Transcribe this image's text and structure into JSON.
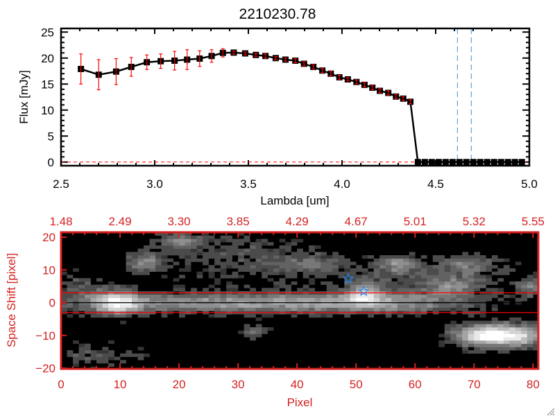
{
  "chart_data": [
    {
      "type": "line",
      "title": "2210230.78",
      "xlabel": "Lambda [um]",
      "ylabel": "Flux [mJy]",
      "xlim": [
        2.5,
        5.0
      ],
      "ylim": [
        -0.7,
        25.7
      ],
      "xticks": [
        2.5,
        3.0,
        3.5,
        4.0,
        4.5,
        5.0
      ],
      "xtick_labels": [
        "2.5",
        "3.0",
        "3.5",
        "4.0",
        "4.5",
        "5.0"
      ],
      "yticks": [
        0,
        5,
        10,
        15,
        20,
        25
      ],
      "ytick_labels": [
        "0",
        "5",
        "10",
        "15",
        "20",
        "25"
      ],
      "series": [
        {
          "name": "flux",
          "color": "#000000",
          "errcolor": "#ff0000",
          "x": [
            2.606,
            2.701,
            2.794,
            2.875,
            2.958,
            3.032,
            3.106,
            3.173,
            3.24,
            3.304,
            3.364,
            3.422,
            3.483,
            3.54,
            3.591,
            3.646,
            3.698,
            3.751,
            3.797,
            3.847,
            3.895,
            3.94,
            3.986,
            4.031,
            4.077,
            4.12,
            4.162,
            4.202,
            4.247,
            4.288,
            4.327,
            4.365,
            4.405,
            4.442,
            4.479,
            4.516,
            4.553,
            4.59,
            4.627,
            4.664,
            4.701,
            4.738,
            4.775,
            4.812,
            4.849,
            4.886,
            4.923,
            4.96
          ],
          "y": [
            17.9,
            16.8,
            17.4,
            18.3,
            19.2,
            19.4,
            19.5,
            19.7,
            19.9,
            20.4,
            21.0,
            21.05,
            20.9,
            20.6,
            20.4,
            20.0,
            19.7,
            19.5,
            18.9,
            18.3,
            17.6,
            17.0,
            16.3,
            15.9,
            15.4,
            14.85,
            14.3,
            13.7,
            13.3,
            12.6,
            12.2,
            11.6,
            0,
            0,
            0,
            0,
            0,
            0,
            0,
            0,
            0,
            0,
            0,
            0,
            0,
            0,
            0,
            0
          ],
          "err": [
            2.9,
            2.9,
            2.5,
            1.8,
            1.4,
            1.4,
            1.8,
            1.9,
            1.5,
            1.2,
            0.8,
            0.3,
            0.3,
            0.3,
            0.4,
            0.3,
            0.3,
            0.4,
            0.4,
            0.4,
            0.4,
            0.4,
            0.4,
            0.3,
            0.4,
            0.4,
            0.4,
            0.4,
            0.4,
            0.4,
            0.4,
            0.4,
            0,
            0,
            0,
            0,
            0,
            0,
            0,
            0,
            0,
            0,
            0,
            0,
            0,
            0,
            0,
            0
          ]
        }
      ],
      "vlines": [
        4.616,
        4.69
      ],
      "vline_color": "#3a8ee0",
      "hline": 0,
      "hline_color": "#ff0000"
    },
    {
      "type": "heatmap",
      "xlabel": "Pixel",
      "ylabel": "Space Shift [pixel]",
      "xlim": [
        0,
        80.9
      ],
      "ylim": [
        -20.2,
        21.5
      ],
      "xticks": [
        0,
        10,
        20,
        30,
        40,
        50,
        60,
        70,
        80
      ],
      "xtick_labels": [
        "0",
        "10",
        "20",
        "30",
        "40",
        "50",
        "60",
        "70",
        "80"
      ],
      "top_tick_labels": [
        "1.48",
        "2.49",
        "3.30",
        "3.85",
        "4.29",
        "4.67",
        "5.01",
        "5.32",
        "5.55"
      ],
      "yticks": [
        -20,
        -10,
        0,
        10,
        20
      ],
      "ytick_labels": [
        "−20",
        "−10",
        "0",
        "10",
        "20"
      ],
      "axis_color": "#d42020",
      "components": [
        {
          "x": 9.5,
          "y": 0,
          "sx": 2.6,
          "sy": 2.6,
          "amp": 0.75
        },
        {
          "x": 30,
          "y": 0,
          "sx": 22,
          "sy": 2.2,
          "amp": 0.55
        },
        {
          "x": 55,
          "y": 0,
          "sx": 10,
          "sy": 2.2,
          "amp": 0.3
        },
        {
          "x": 14,
          "y": 12.5,
          "sx": 2.2,
          "sy": 2,
          "amp": 0.45
        },
        {
          "x": 20,
          "y": 19,
          "sx": 2.5,
          "sy": 1.6,
          "amp": 0.4
        },
        {
          "x": 57,
          "y": 12,
          "sx": 2.2,
          "sy": 1.8,
          "amp": 0.42
        },
        {
          "x": 72,
          "y": -10,
          "sx": 3.8,
          "sy": 2.4,
          "amp": 0.95
        },
        {
          "x": 78,
          "y": -10,
          "sx": 3,
          "sy": 2.4,
          "amp": 0.6
        },
        {
          "x": 51.5,
          "y": 3,
          "sx": 2,
          "sy": 2.2,
          "amp": 0.55
        },
        {
          "x": 33,
          "y": -9,
          "sx": 1.5,
          "sy": 1.5,
          "amp": 0.35
        },
        {
          "x": 42,
          "y": 12,
          "sx": 4,
          "sy": 2,
          "amp": 0.25
        },
        {
          "x": 69,
          "y": 12,
          "sx": 3,
          "sy": 2,
          "amp": 0.3
        },
        {
          "x": 79.5,
          "y": 5,
          "sx": 1.5,
          "sy": 2,
          "amp": 0.4
        },
        {
          "x": 66,
          "y": 5,
          "sx": 3,
          "sy": 2,
          "amp": 0.32
        },
        {
          "x": 5,
          "y": -16,
          "sx": 6,
          "sy": 2.5,
          "amp": 0.2
        },
        {
          "x": 3,
          "y": 5,
          "sx": 3,
          "sy": 3,
          "amp": 0.22
        },
        {
          "x": 30,
          "y": 14,
          "sx": 10,
          "sy": 5,
          "amp": 0.2
        },
        {
          "x": 62,
          "y": 8,
          "sx": 12,
          "sy": 4,
          "amp": 0.2
        }
      ],
      "hlines": [
        {
          "y": 3,
          "color": "#ff0000"
        },
        {
          "y": 0,
          "color": "#000000"
        },
        {
          "y": -3,
          "color": "#ff0000"
        }
      ],
      "markers": [
        {
          "x": 48.7,
          "y": 7.3,
          "symbol": "star",
          "color": "#2a8cf0"
        },
        {
          "x": 51.3,
          "y": 3.5,
          "symbol": "star",
          "color": "#2a8cf0"
        }
      ]
    }
  ]
}
